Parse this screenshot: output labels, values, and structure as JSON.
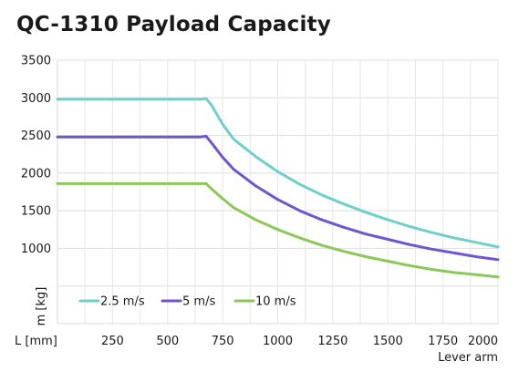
{
  "chart_data": {
    "type": "line",
    "title": "QC-1310 Payload Capacity",
    "xlabel": "Lever arm",
    "x_unit_label": "L [mm]",
    "ylabel": "m [kg]",
    "xlim": [
      0,
      2000
    ],
    "ylim": [
      0,
      3500
    ],
    "x_ticks": [
      250,
      500,
      750,
      1000,
      1250,
      1500,
      1750,
      2000
    ],
    "y_ticks": [
      1000,
      1500,
      2000,
      2500,
      3000,
      3500
    ],
    "grid": true,
    "legend_position": "bottom-left",
    "x": [
      0,
      100,
      200,
      300,
      400,
      500,
      600,
      650,
      675,
      700,
      750,
      800,
      900,
      1000,
      1100,
      1200,
      1300,
      1400,
      1500,
      1600,
      1700,
      1800,
      1900,
      2000
    ],
    "series": [
      {
        "name": "2.5 m/s",
        "color": "#6fcfcb",
        "values": [
          2980,
          2980,
          2980,
          2980,
          2980,
          2980,
          2980,
          2980,
          2990,
          2900,
          2650,
          2450,
          2220,
          2020,
          1850,
          1710,
          1590,
          1480,
          1380,
          1290,
          1210,
          1140,
          1080,
          1020
        ]
      },
      {
        "name": "5 m/s",
        "color": "#6f55d0",
        "values": [
          2480,
          2480,
          2480,
          2480,
          2480,
          2480,
          2480,
          2480,
          2490,
          2400,
          2210,
          2050,
          1830,
          1650,
          1500,
          1380,
          1280,
          1190,
          1120,
          1050,
          990,
          940,
          890,
          850
        ]
      },
      {
        "name": "10 m/s",
        "color": "#8cc858",
        "values": [
          1860,
          1860,
          1860,
          1860,
          1860,
          1860,
          1860,
          1860,
          1860,
          1790,
          1660,
          1540,
          1380,
          1250,
          1140,
          1040,
          960,
          890,
          830,
          770,
          720,
          680,
          650,
          620
        ]
      }
    ]
  }
}
